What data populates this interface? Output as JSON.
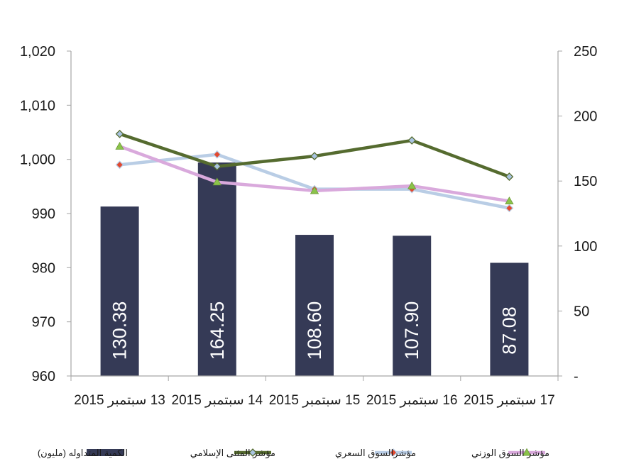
{
  "chart_data": {
    "type": "bar",
    "categories": [
      "13 سبتمبر 2015",
      "14 سبتمبر 2015",
      "15 سبتمبر 2015",
      "16 سبتمبر 2015",
      "17 سبتمبر 2015"
    ],
    "left_axis": {
      "min": 960,
      "max": 1020,
      "step": 10,
      "tick_labels": [
        "960",
        "970",
        "980",
        "990",
        "1,000",
        "1,010",
        "1,020"
      ]
    },
    "right_axis": {
      "min": 0,
      "max": 250,
      "step": 50,
      "tick_labels": [
        "-",
        "50",
        "100",
        "150",
        "200",
        "250"
      ]
    },
    "series": [
      {
        "name": "الكمية المتداوله (مليون)",
        "type": "bar",
        "axis": "right",
        "color": "#353a56",
        "values": [
          130.38,
          164.25,
          108.6,
          107.9,
          87.08
        ],
        "labels": [
          "130.38",
          "164.25",
          "108.60",
          "107.90",
          "87.08"
        ]
      },
      {
        "name": "مؤشر المثنى الإسلامي",
        "type": "line",
        "axis": "left",
        "color": "#556b2f",
        "marker": "diamond",
        "marker_fill": "#a9c3e0",
        "values": [
          1004.7,
          998.7,
          1000.6,
          1003.5,
          996.8
        ]
      },
      {
        "name": "مؤشرالسوق السعري",
        "type": "line",
        "axis": "left",
        "color": "#b9cde5",
        "marker": "diamond",
        "marker_fill": "#e2492f",
        "values": [
          999.0,
          1000.9,
          994.5,
          994.5,
          991.0
        ]
      },
      {
        "name": "مؤشر السوق الوزني",
        "type": "line",
        "axis": "left",
        "color": "#d9a9dc",
        "marker": "triangle",
        "marker_fill": "#8bc34a",
        "values": [
          1002.4,
          995.8,
          994.2,
          995.1,
          992.3
        ]
      }
    ],
    "grid": false,
    "legend": "bottom"
  }
}
